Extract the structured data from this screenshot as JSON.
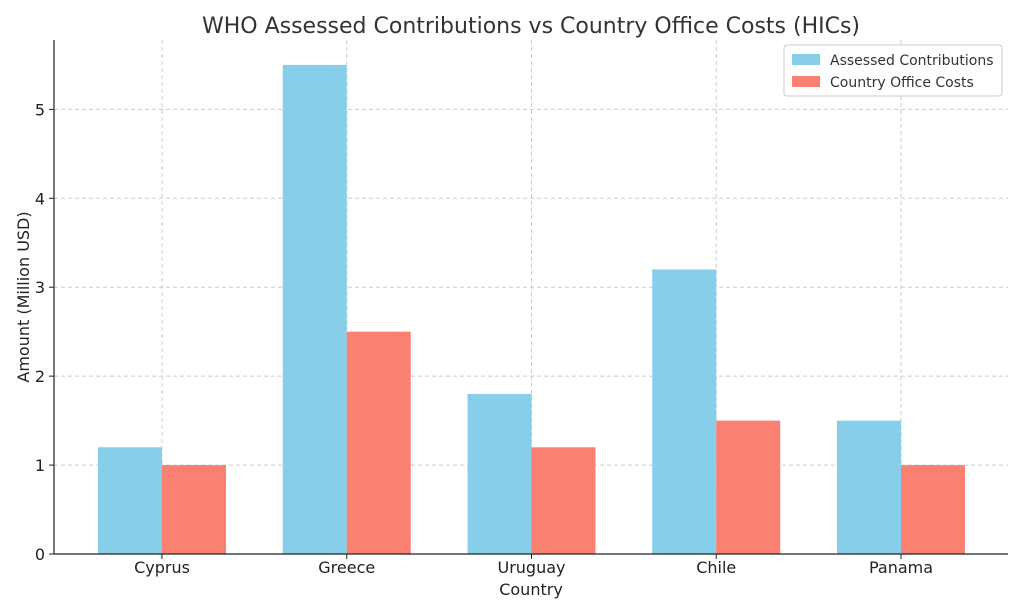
{
  "chart_data": {
    "type": "bar",
    "title": "WHO Assessed Contributions vs Country Office Costs (HICs)",
    "xlabel": "Country",
    "ylabel": "Amount (Million USD)",
    "categories": [
      "Cyprus",
      "Greece",
      "Uruguay",
      "Chile",
      "Panama"
    ],
    "series": [
      {
        "name": "Assessed Contributions",
        "color": "#87CEEB",
        "values": [
          1.2,
          5.5,
          1.8,
          3.2,
          1.5
        ]
      },
      {
        "name": "Country Office Costs",
        "color": "#FA8072",
        "values": [
          1.0,
          2.5,
          1.2,
          1.5,
          1.0
        ]
      }
    ],
    "ylim": [
      0,
      5.78
    ],
    "yticks": [
      0,
      1,
      2,
      3,
      4,
      5
    ],
    "grid": true,
    "legend_position": "top-right"
  }
}
